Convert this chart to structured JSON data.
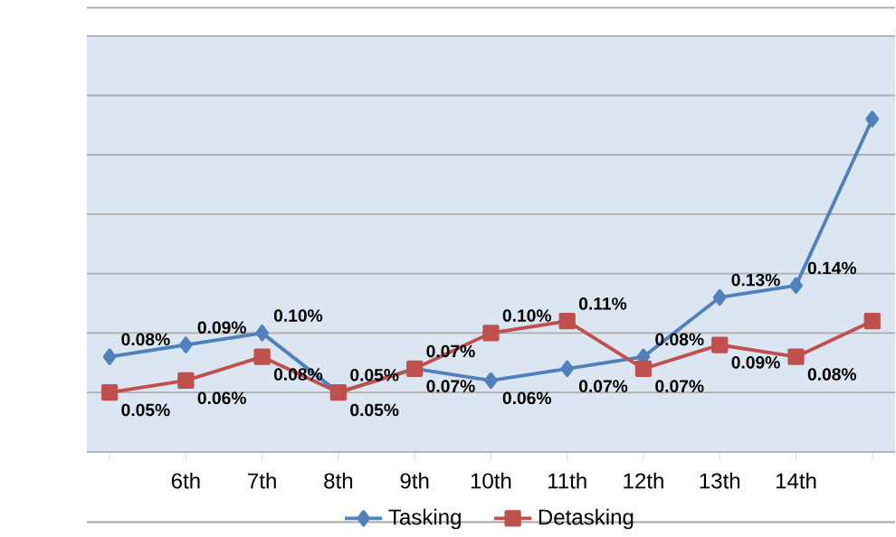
{
  "chart_data": {
    "type": "line",
    "categories": [
      null,
      "6th",
      "7th",
      "8th",
      "9th",
      "10th",
      "11th",
      "12th",
      "13th",
      "14th",
      null
    ],
    "series": [
      {
        "name": "Tasking",
        "color": "#4f81bd",
        "marker": "diamond",
        "line_style": "solid",
        "values": [
          0.08,
          0.09,
          0.1,
          0.05,
          0.07,
          0.06,
          0.07,
          0.08,
          0.13,
          0.14,
          0.28
        ],
        "value_labels": [
          "0.08%",
          "0.09%",
          "0.10%",
          "0.05%",
          "0.07%",
          "0.06%",
          "0.07%",
          "0.08%",
          "0.13%",
          "0.14%",
          null
        ]
      },
      {
        "name": "Detasking",
        "color": "#c0504d",
        "marker": "square",
        "line_style": "solid",
        "values": [
          0.05,
          0.06,
          0.08,
          0.05,
          0.07,
          0.1,
          0.11,
          0.07,
          0.09,
          0.08,
          0.11
        ],
        "value_labels": [
          "0.05%",
          "0.06%",
          "0.08%",
          "0.05%",
          "0.07%",
          "0.10%",
          "0.11%",
          "0.07%",
          "0.09%",
          "0.08%",
          null
        ]
      }
    ],
    "ylim": [
      0,
      0.35
    ],
    "tick_labels": "x",
    "grid": "y",
    "legend": "bottom"
  }
}
